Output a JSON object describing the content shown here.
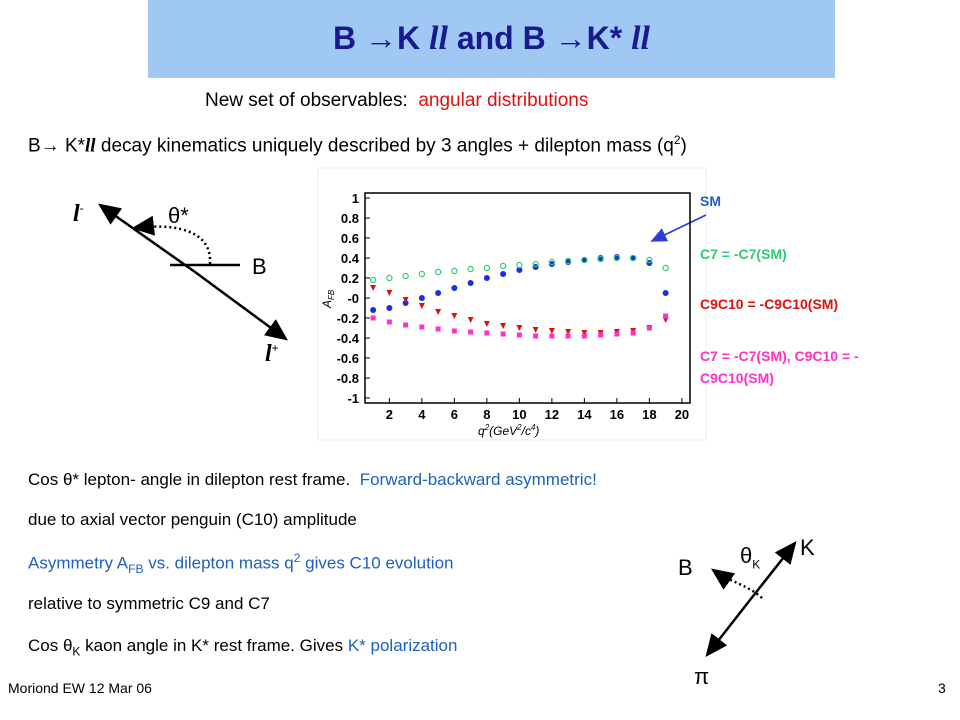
{
  "header": {
    "title": [
      "B →K ",
      "ll",
      " and B →K* ",
      "ll"
    ]
  },
  "subtitle": {
    "text": "New set of observables:",
    "highlight": "angular distributions"
  },
  "kinematics": [
    "B→ K*",
    "ll",
    " decay kinematics uniquely described by 3 angles + dilepton mass (q",
    "2",
    ")"
  ],
  "diagram_lepton": {
    "l_minus": [
      "l",
      "-"
    ],
    "theta": "θ*",
    "b": "B",
    "l_plus": [
      "l",
      "+"
    ]
  },
  "diagram_kaon": {
    "b": "B",
    "theta": [
      "θ",
      "K"
    ],
    "k": "K",
    "pi": "π"
  },
  "chart_data": {
    "type": "scatter",
    "y_label": [
      "A",
      "FB"
    ],
    "x_label": [
      "q",
      "2",
      "(GeV",
      "2",
      "/c",
      "4",
      ")"
    ],
    "x": [
      1,
      2,
      3,
      4,
      5,
      6,
      7,
      8,
      9,
      10,
      11,
      12,
      13,
      14,
      15,
      16,
      17,
      18,
      19
    ],
    "series": [
      {
        "name": "SM",
        "color": "#1a2ee8",
        "marker": "dot",
        "values": [
          -0.12,
          -0.1,
          -0.05,
          0,
          0.05,
          0.1,
          0.15,
          0.2,
          0.24,
          0.28,
          0.31,
          0.34,
          0.36,
          0.38,
          0.4,
          0.41,
          0.4,
          0.35,
          0.05
        ]
      },
      {
        "name": "C7 = -C7(SM)",
        "color": "#2ecc71",
        "marker": "circle",
        "values": [
          0.18,
          0.2,
          0.22,
          0.24,
          0.26,
          0.27,
          0.29,
          0.3,
          0.32,
          0.33,
          0.34,
          0.36,
          0.37,
          0.38,
          0.39,
          0.4,
          0.4,
          0.38,
          0.3
        ]
      },
      {
        "name": "C9C10 = -C9C10(SM)",
        "color": "#e01010",
        "marker": "triangle",
        "values": [
          0.1,
          0.05,
          -0.02,
          -0.08,
          -0.14,
          -0.18,
          -0.22,
          -0.26,
          -0.28,
          -0.3,
          -0.32,
          -0.33,
          -0.34,
          -0.35,
          -0.35,
          -0.34,
          -0.33,
          -0.3,
          -0.22
        ]
      },
      {
        "name": "C7 = -C7(SM), C9C10 = -C9C10(SM)",
        "color": "#ff30c8",
        "marker": "square",
        "values": [
          -0.2,
          -0.24,
          -0.27,
          -0.29,
          -0.31,
          -0.33,
          -0.34,
          -0.35,
          -0.36,
          -0.37,
          -0.38,
          -0.38,
          -0.38,
          -0.38,
          -0.37,
          -0.36,
          -0.35,
          -0.3,
          -0.18
        ]
      }
    ],
    "xlim": [
      0.5,
      20.5
    ],
    "xticks": [
      2,
      4,
      6,
      8,
      10,
      12,
      14,
      16,
      18,
      20
    ],
    "ylim": [
      -1.05,
      1.05
    ],
    "yticks": [
      1,
      0.8,
      0.6,
      0.4,
      0.2,
      {
        "value": 0,
        "label": "-0"
      },
      -0.2,
      -0.4,
      -0.6,
      -0.8,
      -1
    ]
  },
  "notes": [
    [
      "Cos θ*  lepton- angle in dilepton rest frame.",
      "Forward-backward asymmetric!"
    ],
    [
      "due to axial vector penguin (C10) amplitude"
    ],
    [
      "Asymmetry A",
      "FB",
      " vs. dilepton mass q",
      "2",
      " gives C10 evolution"
    ],
    [
      "relative to symmetric C9 and C7"
    ],
    [
      "Cos θ",
      "K",
      " kaon angle in K* rest frame. Gives ",
      "K* polarization"
    ]
  ],
  "footer": {
    "left": "Moriond EW 12 Mar 06",
    "page": "3"
  }
}
